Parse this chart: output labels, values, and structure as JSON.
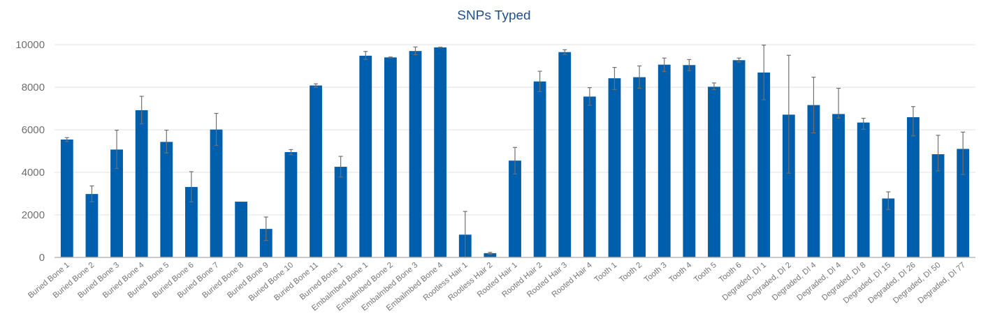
{
  "chart_data": {
    "type": "bar",
    "title": "SNPs Typed",
    "categories": [
      "Buried Bone 1",
      "Buried Bone 2",
      "Buried Bone 3",
      "Buried Bone 4",
      "Buried Bone 5",
      "Buried Bone 6",
      "Buried Bone 7",
      "Buried Bone 8",
      "Buried Bone 9",
      "Buried Bone 10",
      "Buried Bone 11",
      "Burned Bone 1",
      "Embalmbed Bone 1",
      "Embalmbed Bone 2",
      "Embalmbed Bone 3",
      "Embalmbed Bone 4",
      "Rootless Hair 1",
      "Rootless Hair 2",
      "Rooted Hair 1",
      "Rooted Hair 2",
      "Rooted Hair 3",
      "Rooted Hair 4",
      "Tooth 1",
      "Tooth 2",
      "Tooth 3",
      "Tooth 4",
      "Tooth 5",
      "Tooth 6",
      "Degraded, DI 1",
      "Degraded, DI 2",
      "Degraded, DI 4",
      "Degraded, DI 4",
      "Degraded, DI 8",
      "Degraded, DI 15",
      "Degraded, DI 26",
      "Degraded, DI 50",
      "Degraded, DI 77"
    ],
    "values": [
      5540,
      2980,
      5070,
      6920,
      5430,
      3310,
      6010,
      2620,
      1340,
      4950,
      8080,
      4260,
      9480,
      9400,
      9700,
      9870,
      1070,
      200,
      4550,
      8270,
      9650,
      7560,
      8420,
      8470,
      9060,
      9040,
      8020,
      9270,
      8690,
      6710,
      7160,
      6740,
      6340,
      2770,
      6590,
      4850,
      5100
    ],
    "errors": [
      [
        5450,
        5630
      ],
      [
        2610,
        3360
      ],
      [
        4180,
        5980
      ],
      [
        6280,
        7570
      ],
      [
        4910,
        5980
      ],
      [
        2610,
        4030
      ],
      [
        5270,
        6770
      ],
      null,
      [
        800,
        1900
      ],
      [
        4830,
        5070
      ],
      [
        7990,
        8160
      ],
      [
        3780,
        4750
      ],
      [
        9310,
        9680
      ],
      [
        9380,
        9420
      ],
      [
        9530,
        9890
      ],
      [
        9860,
        9880
      ],
      [
        0,
        2160
      ],
      [
        150,
        240
      ],
      [
        3920,
        5170
      ],
      [
        7790,
        8750
      ],
      [
        9540,
        9760
      ],
      [
        7150,
        7980
      ],
      [
        7890,
        8930
      ],
      [
        7950,
        9000
      ],
      [
        8740,
        9370
      ],
      [
        8780,
        9300
      ],
      [
        7890,
        8200
      ],
      [
        9180,
        9370
      ],
      [
        7410,
        9980
      ],
      [
        3960,
        9500
      ],
      [
        5850,
        8470
      ],
      [
        6550,
        7950
      ],
      [
        6020,
        6540
      ],
      [
        2250,
        3080
      ],
      [
        5710,
        7090
      ],
      [
        4070,
        5740
      ],
      [
        3900,
        5890
      ]
    ],
    "color": "#005fad",
    "ylim": [
      0,
      10000
    ],
    "yticks": [
      0,
      2000,
      4000,
      6000,
      8000,
      10000
    ],
    "grid": "y"
  }
}
